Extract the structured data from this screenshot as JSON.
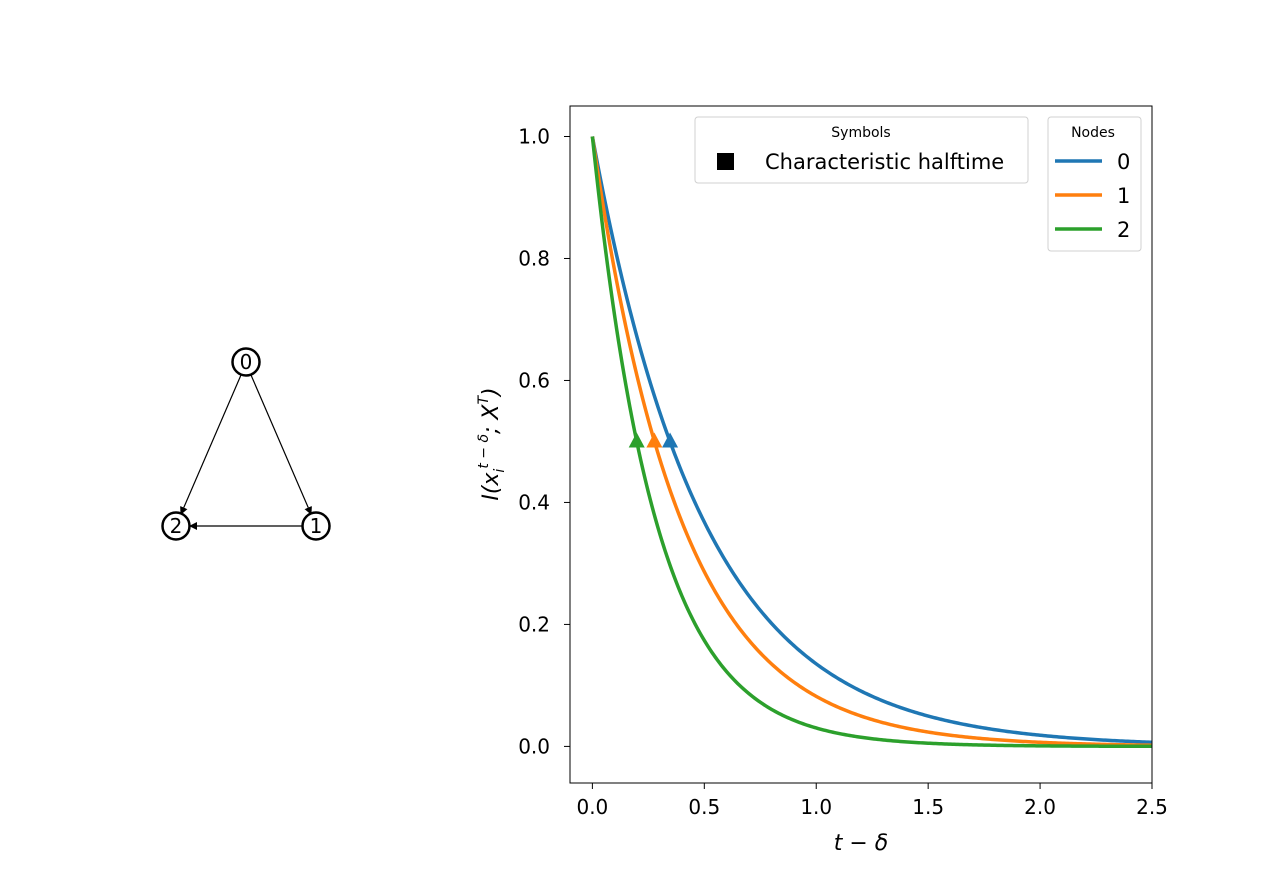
{
  "chart_data": {
    "type": "line",
    "xlabel": "t − δ",
    "ylabel_main": "I(x",
    "ylabel_sub": "i",
    "ylabel_sup": "t − δ",
    "ylabel_mid": "; X",
    "ylabel_sup2": "T",
    "ylabel_end": ")",
    "xlim": [
      -0.1,
      2.5
    ],
    "ylim": [
      -0.06,
      1.05
    ],
    "grid": false,
    "x_ticks": [
      "0.0",
      "0.5",
      "1.0",
      "1.5",
      "2.0",
      "2.5"
    ],
    "x_tick_values": [
      0.0,
      0.5,
      1.0,
      1.5,
      2.0,
      2.5
    ],
    "y_ticks": [
      "0.0",
      "0.2",
      "0.4",
      "0.6",
      "0.8",
      "1.0"
    ],
    "y_tick_values": [
      0.0,
      0.2,
      0.4,
      0.6,
      0.8,
      1.0
    ],
    "series": [
      {
        "name": "0",
        "color": "#1f77b4",
        "decay_rate": 2.0,
        "halftime": 0.347
      },
      {
        "name": "1",
        "color": "#ff7f0e",
        "decay_rate": 2.5,
        "halftime": 0.277
      },
      {
        "name": "2",
        "color": "#2ca02c",
        "decay_rate": 3.5,
        "halftime": 0.198
      }
    ],
    "halftime_value": 0.5,
    "legend_symbols": {
      "title": "Symbols",
      "entry": "Characteristic halftime",
      "marker": "square",
      "placement": "top-right"
    },
    "legend_nodes": {
      "title": "Nodes",
      "placement": "top-right"
    }
  },
  "graph": {
    "nodes": [
      {
        "id": "0",
        "label": "0"
      },
      {
        "id": "1",
        "label": "1"
      },
      {
        "id": "2",
        "label": "2"
      }
    ],
    "edges": [
      {
        "from": "0",
        "to": "1"
      },
      {
        "from": "0",
        "to": "2"
      },
      {
        "from": "1",
        "to": "2"
      }
    ]
  }
}
